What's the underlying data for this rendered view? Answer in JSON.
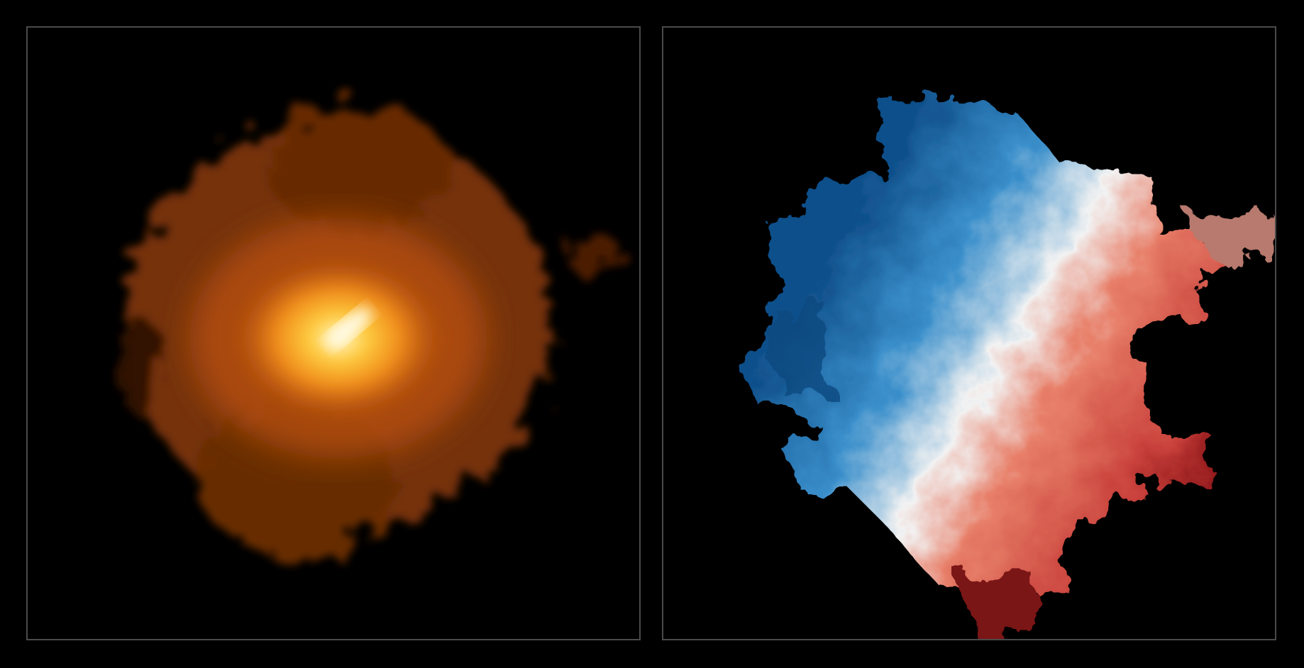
{
  "panels": [
    {
      "id": "intensity-map",
      "colormap": "afmhot",
      "colors": {
        "core": "#fff6c0",
        "mid": "#f08a1a",
        "outer": "#8a3a08",
        "background": "#000000"
      }
    },
    {
      "id": "velocity-map",
      "colormap": "RdBu_r",
      "colors": {
        "blue": "#1f5f9a",
        "white": "#f4f4f4",
        "red": "#d9503a",
        "darkred": "#6b0e10",
        "background": "#000000"
      }
    }
  ],
  "frame_color": "#4a4a4a"
}
